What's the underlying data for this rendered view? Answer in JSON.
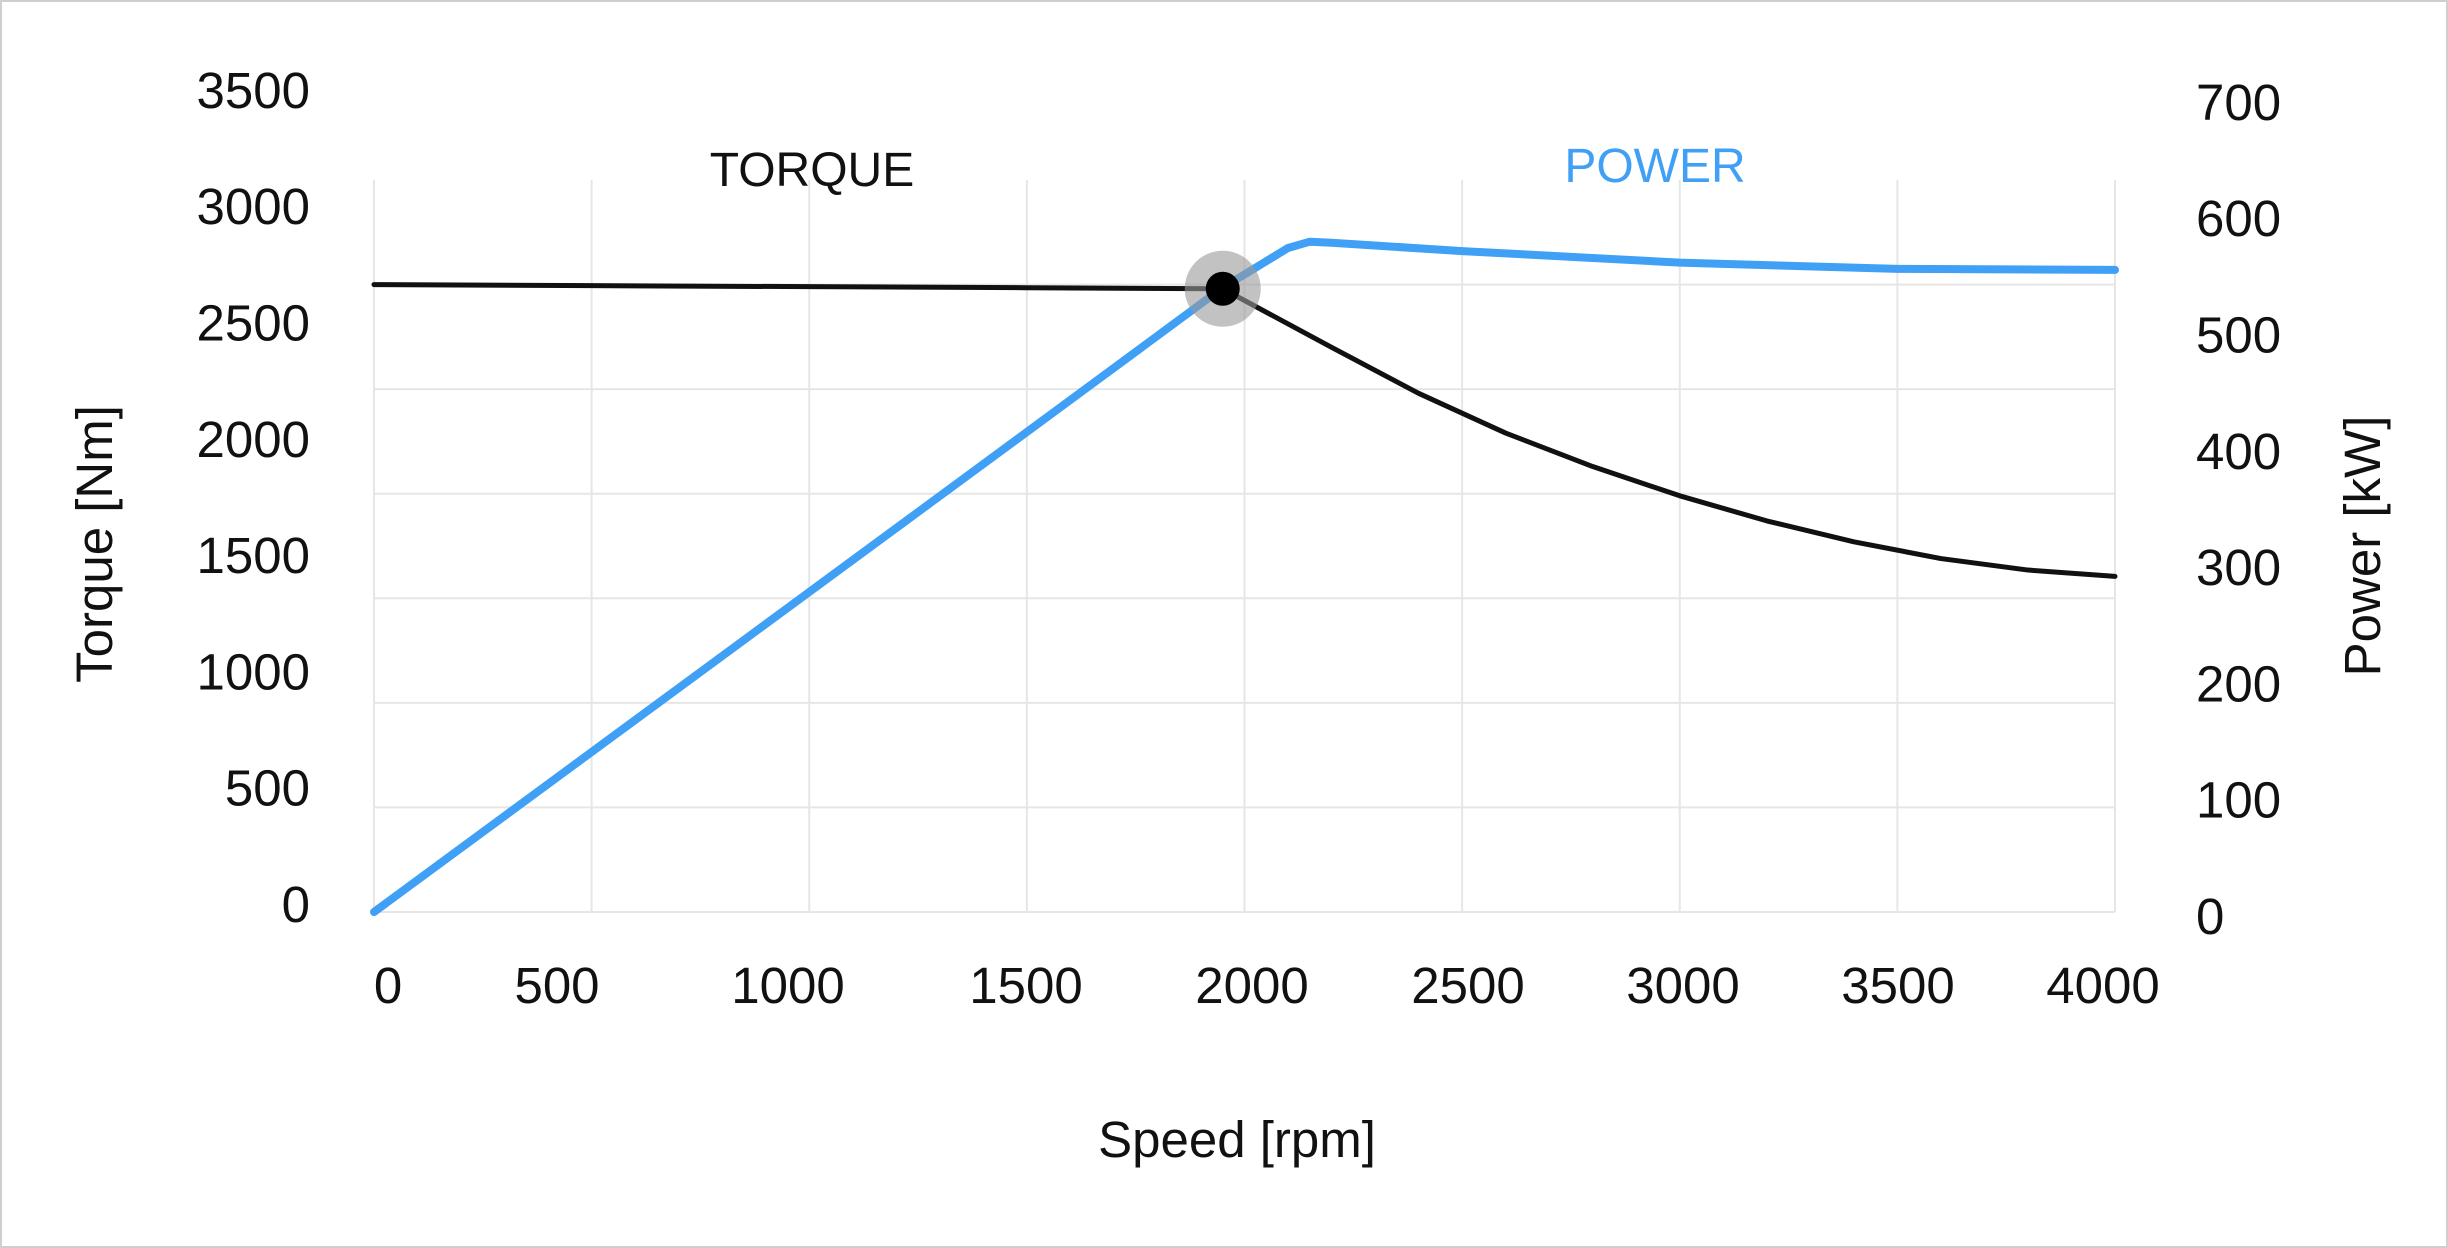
{
  "chart_data": {
    "type": "line",
    "xlabel": "Speed [rpm]",
    "ylabel_left": "Torque [Nm]",
    "ylabel_right": "Power [kW]",
    "xlim": [
      0,
      4000
    ],
    "ylim_left": [
      0,
      3500
    ],
    "ylim_right": [
      0,
      700
    ],
    "x_ticks": [
      "0",
      "500",
      "1000",
      "1500",
      "2000",
      "2500",
      "3000",
      "3500",
      "4000"
    ],
    "y_left_ticks": [
      "0",
      "500",
      "1000",
      "1500",
      "2000",
      "2500",
      "3000",
      "3500"
    ],
    "y_right_ticks": [
      "0",
      "100",
      "200",
      "300",
      "400",
      "500",
      "600",
      "700"
    ],
    "grid": true,
    "series": [
      {
        "name": "TORQUE",
        "axis": "left",
        "color": "#111111",
        "x": [
          0,
          500,
          1000,
          1500,
          1950,
          2200,
          2400,
          2600,
          2800,
          3000,
          3200,
          3400,
          3600,
          3800,
          4000
        ],
        "y": [
          3000,
          2995,
          2990,
          2985,
          2980,
          2700,
          2480,
          2290,
          2130,
          1990,
          1870,
          1770,
          1690,
          1635,
          1605
        ]
      },
      {
        "name": "POWER",
        "axis": "right",
        "color": "#3fa0f5",
        "x": [
          0,
          500,
          1000,
          1500,
          1950,
          2100,
          2150,
          2200,
          2500,
          3000,
          3500,
          4000
        ],
        "y": [
          0,
          153,
          306,
          459,
          597,
          635,
          641,
          640,
          632,
          621,
          615,
          614
        ]
      }
    ],
    "marker": {
      "x": 1950,
      "torque": 2980,
      "power": 597
    }
  }
}
